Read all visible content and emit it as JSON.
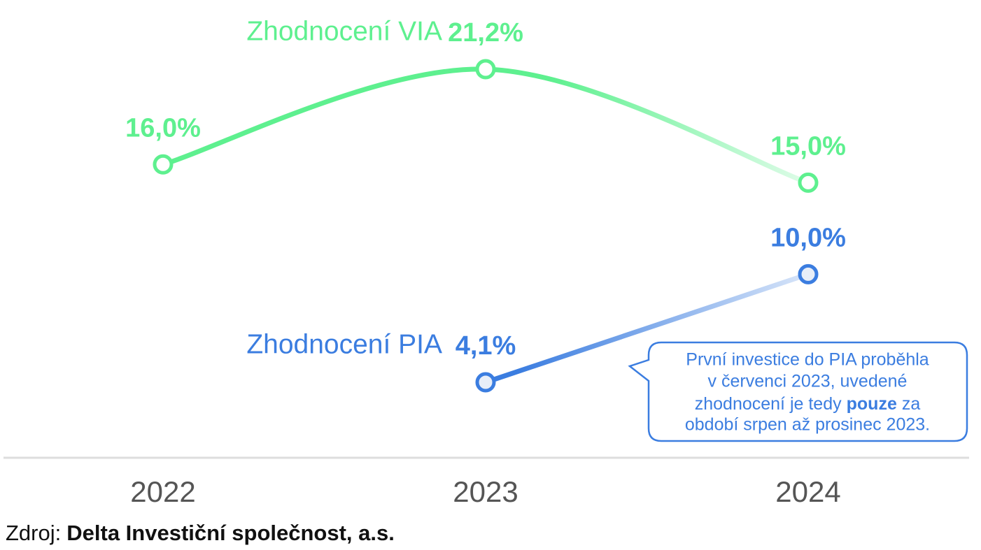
{
  "chart_data": {
    "type": "line",
    "categories": [
      "2022",
      "2023",
      "2024"
    ],
    "series": [
      {
        "name": "Zhodnocení VIA",
        "color": "#5ef08f",
        "marker_fill": "#ffffff",
        "values": [
          16.0,
          21.2,
          15.0
        ],
        "value_labels": [
          "16,0%",
          "21,2%",
          "15,0%"
        ]
      },
      {
        "name": "Zhodnocení PIA",
        "color": "#3b7de0",
        "marker_fill": "#e8eef8",
        "values": [
          null,
          4.1,
          10.0
        ],
        "value_labels": [
          null,
          "4,1%",
          "10,0%"
        ]
      }
    ],
    "annotation": {
      "line1": "První investice do PIA proběhla",
      "line2": "v červenci 2023, uvedené",
      "line3_before": "zhodnocení je tedy",
      "line3_bold": "pouze",
      "line3_after": "za",
      "line4": "období srpen až prosinec 2023."
    },
    "source_label": "Zdroj:",
    "source": "Delta Investiční společnost, a.s."
  }
}
